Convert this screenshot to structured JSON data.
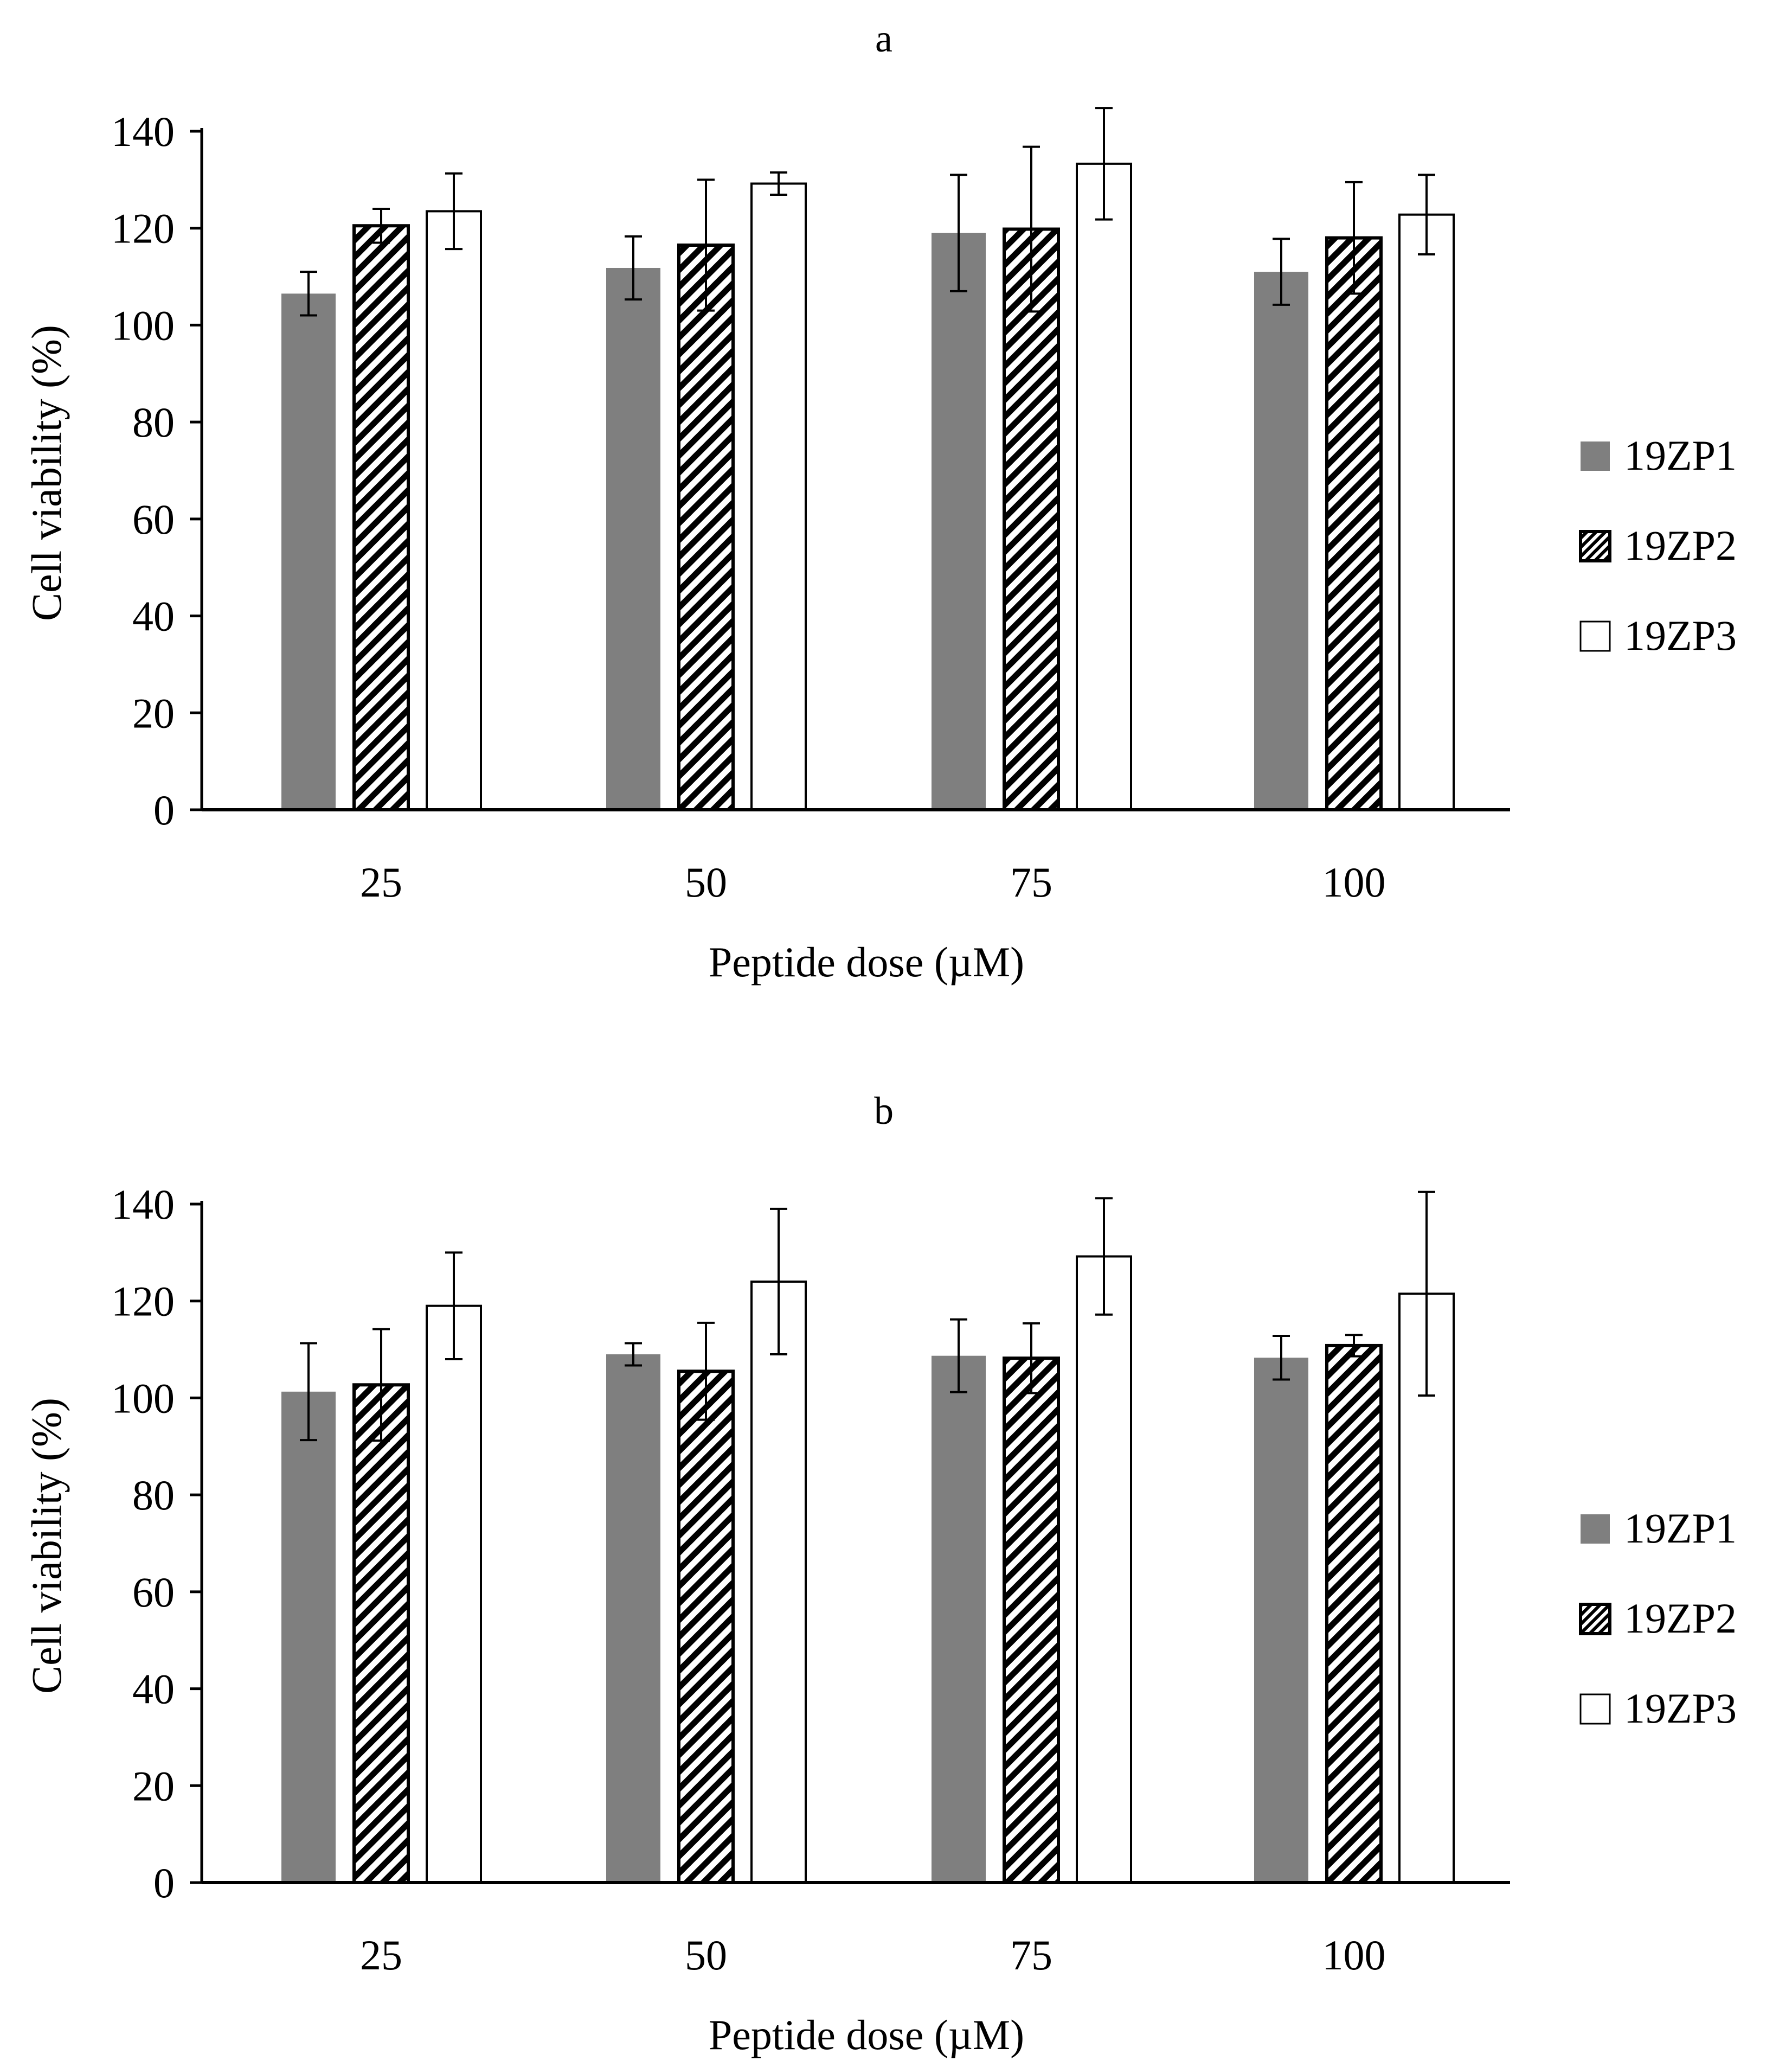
{
  "colors": {
    "axis": "#000000",
    "bar_gray": "#7f7f7f",
    "bar_edge": "#000000",
    "white": "#ffffff"
  },
  "legend_patterns": [
    "solid-gray",
    "diagonal-hatch",
    "white"
  ],
  "chart_data": [
    {
      "type": "bar",
      "panel_label": "a",
      "title": "a",
      "xlabel": "Peptide dose (µM)",
      "ylabel": "Cell viability (%)",
      "ylim": [
        0,
        140
      ],
      "yticks": [
        "0",
        "20",
        "40",
        "60",
        "80",
        "100",
        "120",
        "140"
      ],
      "categories": [
        "25",
        "50",
        "75",
        "100"
      ],
      "grid": false,
      "legend_position": "right",
      "series": [
        {
          "name": "19ZP1",
          "values": [
            106.5,
            111.8,
            119.0,
            111.0
          ],
          "errors": [
            4.5,
            6.5,
            12.0,
            6.8
          ]
        },
        {
          "name": "19ZP2",
          "values": [
            120.5,
            116.5,
            119.8,
            118.0
          ],
          "errors": [
            3.5,
            13.5,
            17.0,
            11.5
          ]
        },
        {
          "name": "19ZP3",
          "values": [
            123.5,
            129.2,
            133.3,
            122.8
          ],
          "errors": [
            7.8,
            2.3,
            11.5,
            8.2
          ]
        }
      ]
    },
    {
      "type": "bar",
      "panel_label": "b",
      "title": "b",
      "xlabel": "Peptide dose (µM)",
      "ylabel": "Cell viability (%)",
      "ylim": [
        0,
        140
      ],
      "yticks": [
        "0",
        "20",
        "40",
        "60",
        "80",
        "100",
        "120",
        "140"
      ],
      "categories": [
        "25",
        "50",
        "75",
        "100"
      ],
      "grid": false,
      "legend_position": "right",
      "series": [
        {
          "name": "19ZP1",
          "values": [
            101.3,
            109.0,
            108.7,
            108.3
          ],
          "errors": [
            10.0,
            2.3,
            7.5,
            4.5
          ]
        },
        {
          "name": "19ZP2",
          "values": [
            102.7,
            105.5,
            108.2,
            110.8
          ],
          "errors": [
            11.5,
            10.0,
            7.2,
            2.2
          ]
        },
        {
          "name": "19ZP3",
          "values": [
            119.0,
            124.0,
            129.2,
            121.5
          ],
          "errors": [
            11.0,
            15.0,
            12.0,
            21.0
          ]
        }
      ]
    }
  ]
}
